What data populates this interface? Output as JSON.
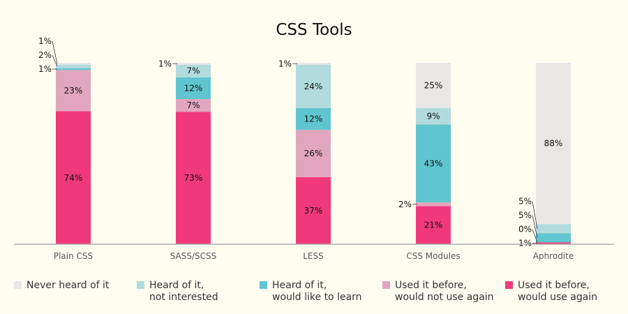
{
  "chart_data": {
    "type": "bar",
    "stacked": true,
    "title": "CSS Tools",
    "categories": [
      "Plain CSS",
      "SASS/SCSS",
      "LESS",
      "CSS Modules",
      "Aphrodite"
    ],
    "ylim": [
      0,
      100
    ],
    "series": [
      {
        "name": "Used it before, would use again",
        "color": "#f0397a",
        "values": [
          74,
          73,
          37,
          21,
          1
        ]
      },
      {
        "name": "Used it before, would not use again",
        "color": "#e1a6bd",
        "values": [
          23,
          7,
          26,
          2,
          0
        ]
      },
      {
        "name": "Heard of it, would like to learn",
        "color": "#5fc5cf",
        "values": [
          1,
          12,
          12,
          43,
          5
        ]
      },
      {
        "name": "Heard of it, not interested",
        "color": "#b2dbdd",
        "values": [
          2,
          7,
          24,
          9,
          5
        ]
      },
      {
        "name": "Never heard of it",
        "color": "#e8e7e6",
        "values": [
          1,
          1,
          1,
          25,
          88
        ]
      }
    ],
    "legend": {
      "position": "bottom",
      "items": [
        {
          "lines": [
            "Never heard of it"
          ],
          "color": "#e8e7e6"
        },
        {
          "lines": [
            "Heard of it,",
            "not interested"
          ],
          "color": "#b2dbdd"
        },
        {
          "lines": [
            "Heard of it,",
            "would like to learn"
          ],
          "color": "#5fc5cf"
        },
        {
          "lines": [
            "Used it before,",
            "would not use again"
          ],
          "color": "#e1a6bd"
        },
        {
          "lines": [
            "Used it before,",
            "would use again"
          ],
          "color": "#f0397a"
        }
      ]
    },
    "grid": false
  }
}
